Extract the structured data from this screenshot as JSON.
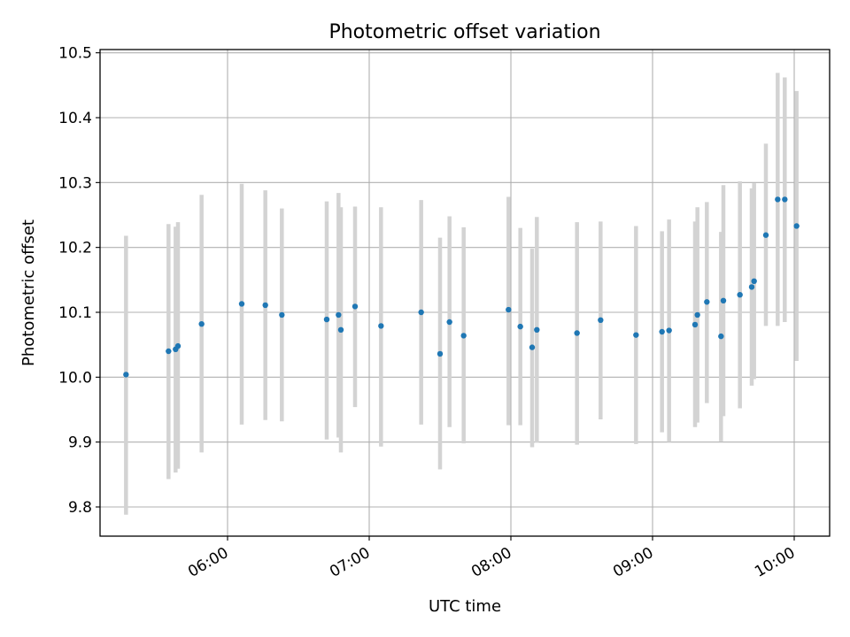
{
  "chart_data": {
    "type": "scatter",
    "title": "Photometric offset variation",
    "xlabel": "UTC time",
    "ylabel": "Photometric offset",
    "xlim": [
      "05:06",
      "10:15"
    ],
    "ylim": [
      9.755,
      10.505
    ],
    "grid": true,
    "xticks": [
      "06:00",
      "07:00",
      "08:00",
      "09:00",
      "10:00"
    ],
    "yticks": [
      9.8,
      9.9,
      10.0,
      10.1,
      10.2,
      10.3,
      10.4,
      10.5
    ],
    "ytick_labels": [
      "9.8",
      "9.9",
      "10.0",
      "10.1",
      "10.2",
      "10.3",
      "10.4",
      "10.5"
    ],
    "colors": {
      "point": "#1f77b4",
      "errorbar": "#d3d3d3",
      "grid": "#b0b0b0"
    },
    "series": [
      {
        "points": [
          {
            "x": "05:17",
            "y": 10.004,
            "ylow": 9.788,
            "yhigh": 10.218
          },
          {
            "x": "05:35",
            "y": 10.04,
            "ylow": 9.843,
            "yhigh": 10.236
          },
          {
            "x": "05:38",
            "y": 10.043,
            "ylow": 9.853,
            "yhigh": 10.232
          },
          {
            "x": "05:39",
            "y": 10.048,
            "ylow": 9.859,
            "yhigh": 10.239
          },
          {
            "x": "05:49",
            "y": 10.082,
            "ylow": 9.884,
            "yhigh": 10.281
          },
          {
            "x": "06:06",
            "y": 10.113,
            "ylow": 9.927,
            "yhigh": 10.298
          },
          {
            "x": "06:16",
            "y": 10.111,
            "ylow": 9.934,
            "yhigh": 10.288
          },
          {
            "x": "06:23",
            "y": 10.096,
            "ylow": 9.932,
            "yhigh": 10.26
          },
          {
            "x": "06:42",
            "y": 10.089,
            "ylow": 9.904,
            "yhigh": 10.271
          },
          {
            "x": "06:47",
            "y": 10.096,
            "ylow": 9.907,
            "yhigh": 10.284
          },
          {
            "x": "06:48",
            "y": 10.073,
            "ylow": 9.884,
            "yhigh": 10.262
          },
          {
            "x": "06:54",
            "y": 10.109,
            "ylow": 9.954,
            "yhigh": 10.263
          },
          {
            "x": "07:05",
            "y": 10.079,
            "ylow": 9.893,
            "yhigh": 10.262
          },
          {
            "x": "07:22",
            "y": 10.1,
            "ylow": 9.927,
            "yhigh": 10.273
          },
          {
            "x": "07:30",
            "y": 10.036,
            "ylow": 9.858,
            "yhigh": 10.215
          },
          {
            "x": "07:34",
            "y": 10.085,
            "ylow": 9.923,
            "yhigh": 10.248
          },
          {
            "x": "07:40",
            "y": 10.064,
            "ylow": 9.898,
            "yhigh": 10.231
          },
          {
            "x": "07:59",
            "y": 10.104,
            "ylow": 9.926,
            "yhigh": 10.278
          },
          {
            "x": "08:04",
            "y": 10.078,
            "ylow": 9.926,
            "yhigh": 10.23
          },
          {
            "x": "08:09",
            "y": 10.046,
            "ylow": 9.892,
            "yhigh": 10.198
          },
          {
            "x": "08:11",
            "y": 10.073,
            "ylow": 9.899,
            "yhigh": 10.247
          },
          {
            "x": "08:28",
            "y": 10.068,
            "ylow": 9.896,
            "yhigh": 10.239
          },
          {
            "x": "08:38",
            "y": 10.088,
            "ylow": 9.935,
            "yhigh": 10.24
          },
          {
            "x": "08:53",
            "y": 10.065,
            "ylow": 9.897,
            "yhigh": 10.233
          },
          {
            "x": "09:04",
            "y": 10.07,
            "ylow": 9.915,
            "yhigh": 10.225
          },
          {
            "x": "09:07",
            "y": 10.072,
            "ylow": 9.9,
            "yhigh": 10.243
          },
          {
            "x": "09:18",
            "y": 10.081,
            "ylow": 9.923,
            "yhigh": 10.24
          },
          {
            "x": "09:19",
            "y": 10.096,
            "ylow": 9.93,
            "yhigh": 10.262
          },
          {
            "x": "09:23",
            "y": 10.116,
            "ylow": 9.96,
            "yhigh": 10.27
          },
          {
            "x": "09:29",
            "y": 10.063,
            "ylow": 9.901,
            "yhigh": 10.224
          },
          {
            "x": "09:30",
            "y": 10.118,
            "ylow": 9.94,
            "yhigh": 10.296
          },
          {
            "x": "09:37",
            "y": 10.127,
            "ylow": 9.952,
            "yhigh": 10.302
          },
          {
            "x": "09:42",
            "y": 10.139,
            "ylow": 9.987,
            "yhigh": 10.291
          },
          {
            "x": "09:43",
            "y": 10.148,
            "ylow": 9.997,
            "yhigh": 10.299
          },
          {
            "x": "09:48",
            "y": 10.219,
            "ylow": 10.079,
            "yhigh": 10.36
          },
          {
            "x": "09:53",
            "y": 10.274,
            "ylow": 10.079,
            "yhigh": 10.469
          },
          {
            "x": "09:56",
            "y": 10.274,
            "ylow": 10.085,
            "yhigh": 10.462
          },
          {
            "x": "10:01",
            "y": 10.233,
            "ylow": 10.025,
            "yhigh": 10.441
          }
        ]
      }
    ]
  }
}
